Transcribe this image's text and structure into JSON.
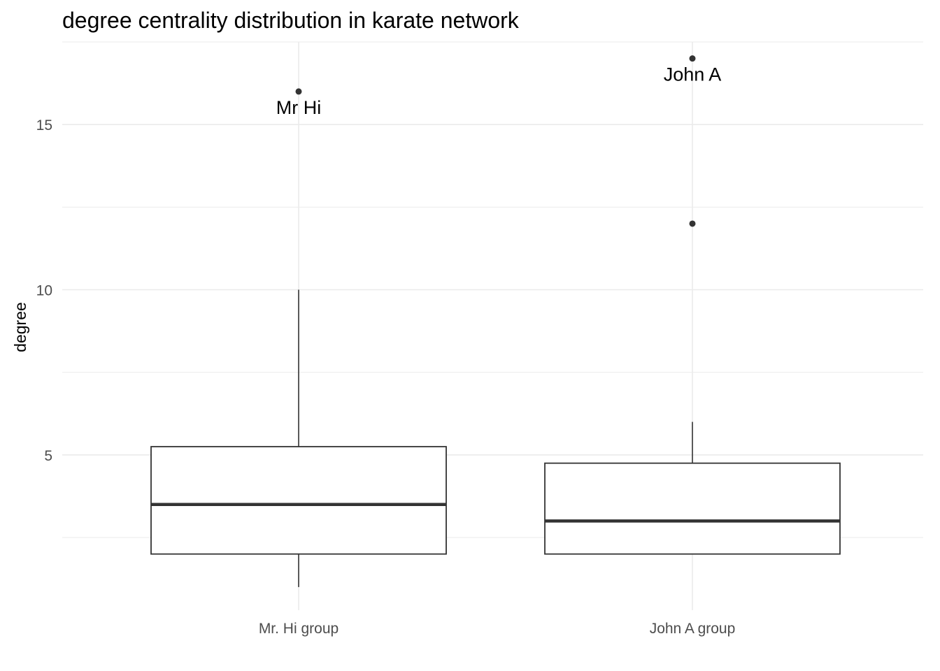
{
  "chart_data": {
    "type": "box",
    "title": "degree centrality distribution in karate network",
    "xlabel": "",
    "ylabel": "degree",
    "ylim": [
      0.3,
      17.5
    ],
    "yticks": [
      5,
      10,
      15
    ],
    "grid": true,
    "categories": [
      "Mr. Hi group",
      "John A group"
    ],
    "boxes": [
      {
        "category": "Mr. Hi group",
        "whisker_low": 1,
        "q1": 2,
        "median": 3.5,
        "q3": 5.25,
        "whisker_high": 10,
        "outliers": [
          16
        ]
      },
      {
        "category": "John A group",
        "whisker_low": 2,
        "q1": 2,
        "median": 3,
        "q3": 4.75,
        "whisker_high": 6,
        "outliers": [
          12,
          17
        ]
      }
    ],
    "annotations": [
      {
        "category": "Mr. Hi group",
        "y": 16,
        "text": "Mr Hi"
      },
      {
        "category": "John A group",
        "y": 17,
        "text": "John A"
      }
    ],
    "colors": {
      "box_line": "#333333",
      "grid": "#ebebeb",
      "point": "#333333"
    }
  }
}
